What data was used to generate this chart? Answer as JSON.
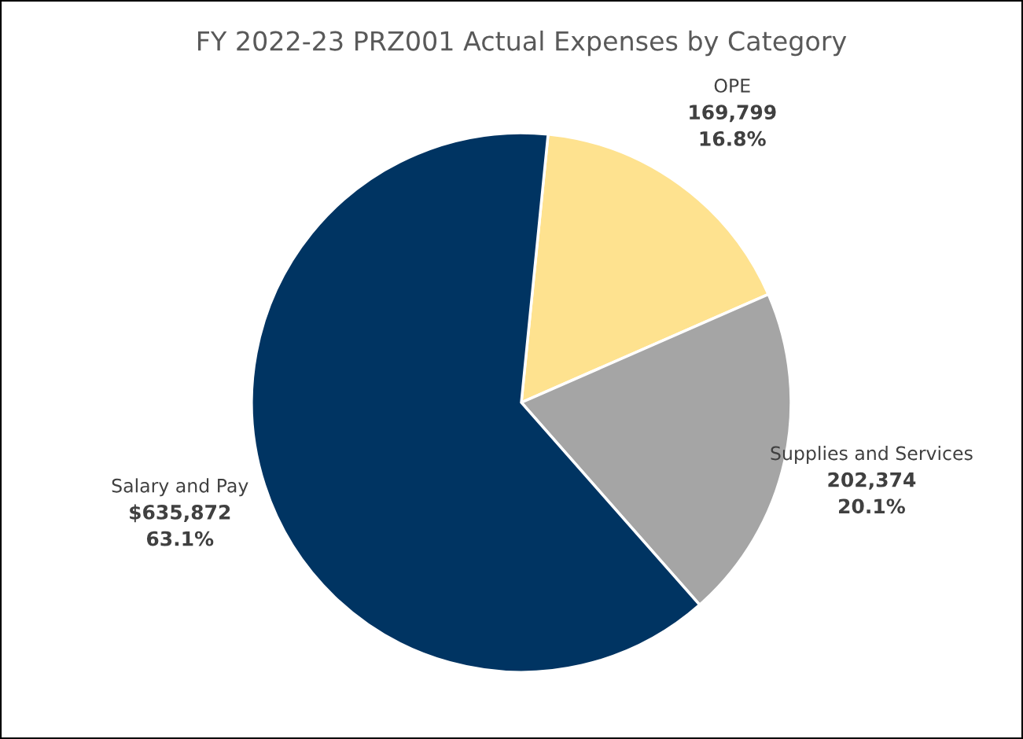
{
  "chart_data": {
    "type": "pie",
    "title": "FY 2022-23 PRZ001 Actual Expenses by Category",
    "categories": [
      "OPE",
      "Supplies and Services",
      "Salary and Pay"
    ],
    "values": [
      169799,
      202374,
      635872
    ],
    "colors": [
      "#fee28f",
      "#a5a5a5",
      "#003462"
    ],
    "value_labels": [
      "169,799\n16.8%",
      "202,374\n20.1%",
      "$635,872\n63.1%"
    ],
    "legend": false
  }
}
